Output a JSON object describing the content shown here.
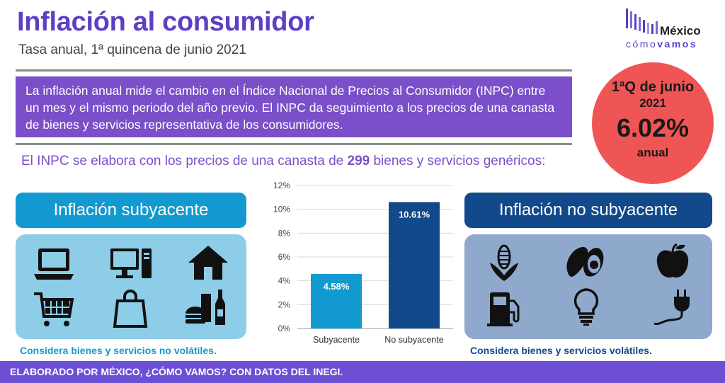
{
  "header": {
    "title": "Inflación al consumidor",
    "subtitle": "Tasa anual, 1ª quincena de junio 2021"
  },
  "logo": {
    "word1": "México",
    "word2_light": "cómo",
    "word2_bold": "vamos"
  },
  "description": "La inflación anual mide el cambio en el Índice Nacional de Precios al Consumidor (INPC) entre un mes y el mismo periodo del año previo. El INPC da seguimiento a los precios de una canasta de bienes y servicios representativa de los consumidores.",
  "highlight": {
    "period": "1ªQ de junio",
    "year": "2021",
    "value": "6.02%",
    "unit": "anual"
  },
  "basket": {
    "prefix": "El INPC se elabora con los precios de una canasta de ",
    "count": "299",
    "suffix": " bienes y servicios genéricos:"
  },
  "left_panel": {
    "heading": "Inflación subyacente",
    "note": "Considera bienes y servicios no volátiles.",
    "icons": [
      "laptop-icon",
      "desktop-computer-icon",
      "house-icon",
      "shopping-cart-icon",
      "shopping-bag-icon",
      "food-drink-icon"
    ]
  },
  "right_panel": {
    "heading": "Inflación no subyacente",
    "note": "Considera bienes y servicios volátiles.",
    "icons": [
      "corn-icon",
      "avocado-icon",
      "apple-icon",
      "fuel-pump-icon",
      "light-bulb-icon",
      "electric-plug-icon"
    ]
  },
  "chart_data": {
    "type": "bar",
    "categories": [
      "Subyacente",
      "No subyacente"
    ],
    "values": [
      4.58,
      10.61
    ],
    "value_labels": [
      "4.58%",
      "10.61%"
    ],
    "ylim": [
      0,
      12
    ],
    "yticks": [
      "0%",
      "2%",
      "4%",
      "6%",
      "8%",
      "10%",
      "12%"
    ],
    "grid": true,
    "colors": [
      "#129ad0",
      "#12498a"
    ]
  },
  "footer": "ELABORADO POR MÉXICO, ¿CÓMO VAMOS? CON DATOS DEL INEGI.",
  "colors": {
    "purple": "#5b3fc4",
    "desc_bg": "#7a4fc9",
    "highlight_red": "#f05555",
    "light_blue": "#129ad0",
    "dark_blue": "#12498a",
    "footer_bg": "#6d4fd6"
  }
}
